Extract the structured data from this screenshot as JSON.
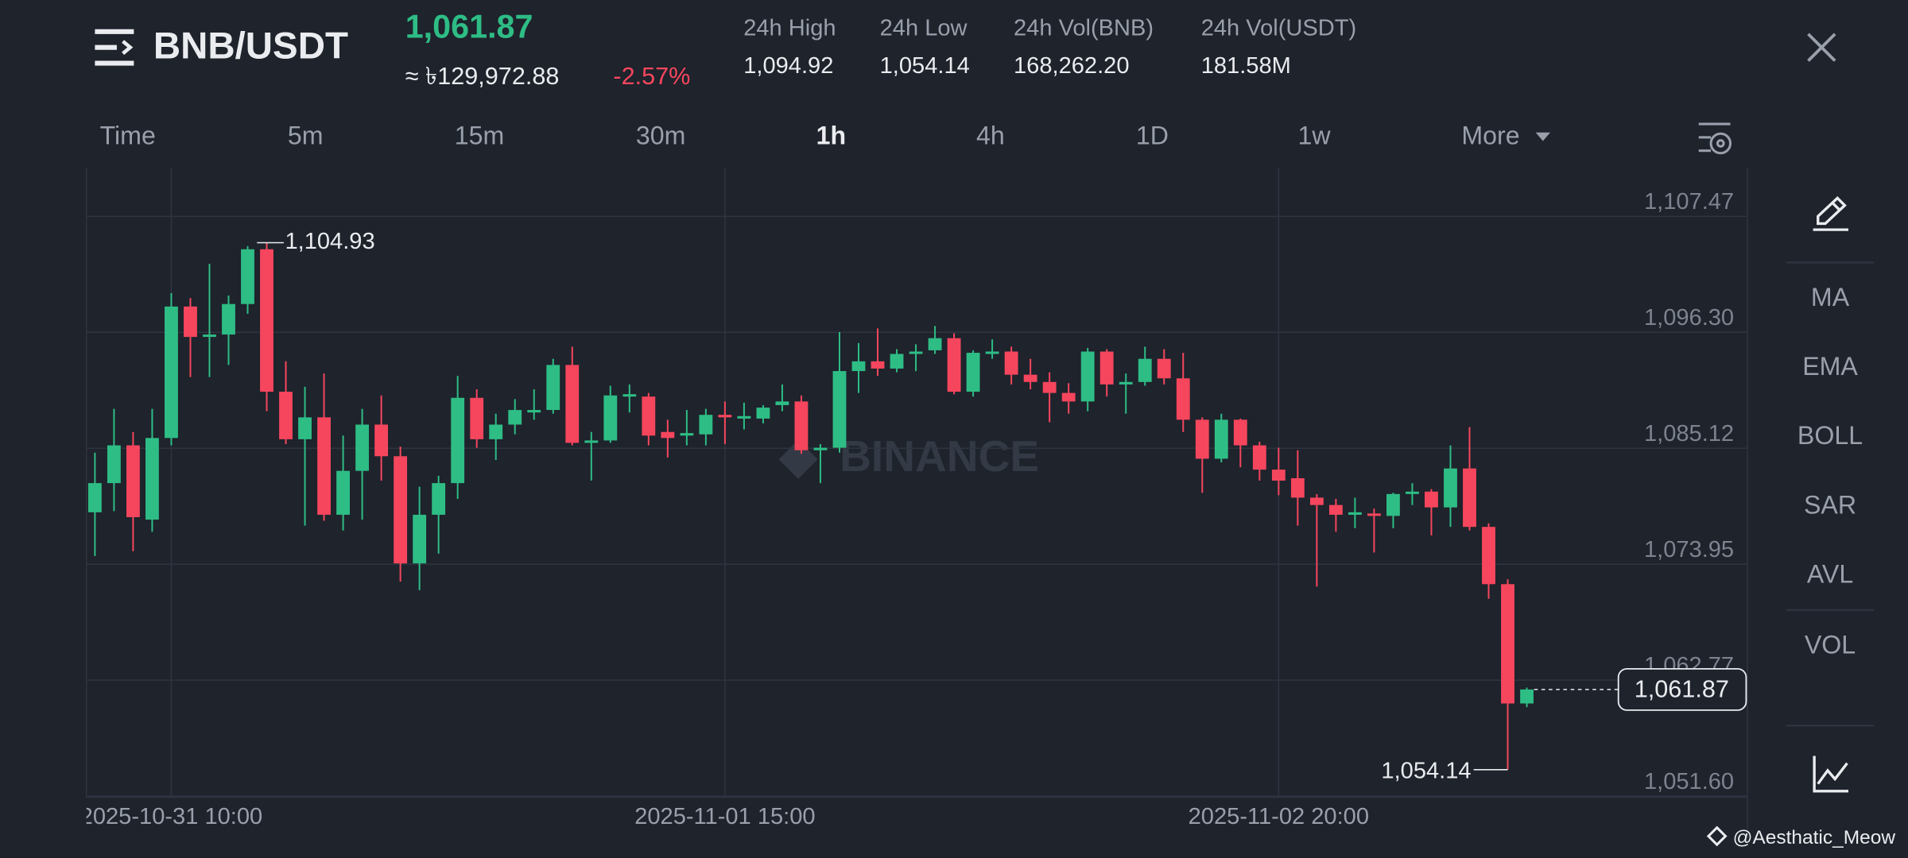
{
  "header": {
    "pair": "BNB/USDT",
    "price": "1,061.87",
    "fiat_price": "≈ ৳129,972.88",
    "change": "-2.57%",
    "stats": [
      {
        "label": "24h High",
        "value": "1,094.92"
      },
      {
        "label": "24h Low",
        "value": "1,054.14"
      },
      {
        "label": "24h Vol(BNB)",
        "value": "168,262.20"
      },
      {
        "label": "24h Vol(USDT)",
        "value": "181.58M"
      }
    ]
  },
  "tabs": {
    "items": [
      "Time",
      "5m",
      "15m",
      "30m",
      "1h",
      "4h",
      "1D",
      "1w",
      "More"
    ],
    "active": 4
  },
  "indicators": [
    "MA",
    "EMA",
    "BOLL",
    "SAR",
    "AVL",
    "VOL"
  ],
  "watermark": "BINANCE",
  "credit": "@Aesthatic_Meow",
  "chart_data": {
    "type": "candlestick",
    "categories": [
      null,
      null,
      null,
      null,
      "2025-10-31 10:00",
      null,
      null,
      null,
      null,
      null,
      null,
      null,
      null,
      null,
      null,
      null,
      null,
      null,
      null,
      null,
      null,
      null,
      null,
      null,
      null,
      null,
      null,
      null,
      null,
      null,
      null,
      null,
      null,
      "2025-11-01 15:00",
      null,
      null,
      null,
      null,
      null,
      null,
      null,
      null,
      null,
      null,
      null,
      null,
      null,
      null,
      null,
      null,
      null,
      null,
      null,
      null,
      null,
      null,
      null,
      null,
      null,
      null,
      null,
      null,
      "2025-11-02 20:00",
      null,
      null,
      null,
      null,
      null,
      null,
      null,
      null,
      null,
      null,
      null,
      null,
      null
    ],
    "open": [
      1078.95,
      1081.76,
      1085.4,
      1078.24,
      1086.11,
      1098.78,
      1095.85,
      1096.08,
      1099.02,
      1104.3,
      1090.57,
      1085.99,
      1088.1,
      1078.71,
      1082.94,
      1087.4,
      1084.35,
      1074.02,
      1078.71,
      1081.76,
      1089.98,
      1085.99,
      1087.4,
      1088.57,
      1088.81,
      1093.15,
      1085.64,
      1085.87,
      1090.1,
      1090.1,
      1086.69,
      1086.34,
      1086.46,
      1088.34,
      1087.98,
      1087.98,
      1089.28,
      1089.63,
      1084.93,
      1085.17,
      1092.56,
      1093.5,
      1092.8,
      1094.21,
      1094.56,
      1095.73,
      1090.57,
      1094.21,
      1094.44,
      1092.21,
      1091.51,
      1090.45,
      1089.63,
      1094.44,
      1091.27,
      1091.51,
      1093.74,
      1091.86,
      1087.87,
      1084.11,
      1087.87,
      1085.4,
      1083.06,
      1082.23,
      1080.36,
      1079.65,
      1078.71,
      1078.83,
      1078.6,
      1080.71,
      1080.94,
      1079.42,
      1083.17,
      1077.54,
      1072.02,
      1060.52
    ],
    "high": [
      1084.7,
      1088.92,
      1086.69,
      1088.92,
      1100.07,
      1099.6,
      1102.89,
      1099.84,
      1104.6,
      1104.93,
      1093.5,
      1091.04,
      1092.33,
      1086.34,
      1088.92,
      1090.21,
      1085.28,
      1081.41,
      1082.47,
      1092.09,
      1090.8,
      1088.45,
      1089.86,
      1090.8,
      1093.74,
      1094.91,
      1086.69,
      1091.15,
      1091.27,
      1090.45,
      1087.87,
      1088.81,
      1088.92,
      1089.63,
      1089.51,
      1089.28,
      1091.27,
      1090.21,
      1085.52,
      1096.32,
      1095.26,
      1096.67,
      1094.67,
      1095.14,
      1096.9,
      1096.2,
      1094.56,
      1095.61,
      1094.91,
      1093.74,
      1092.44,
      1091.39,
      1094.79,
      1094.67,
      1092.33,
      1094.91,
      1094.67,
      1094.32,
      1088.1,
      1088.45,
      1087.98,
      1085.75,
      1085.17,
      1084.93,
      1080.71,
      1080.24,
      1080.36,
      1079.3,
      1080.83,
      1081.76,
      1081.18,
      1085.4,
      1087.16,
      1077.89,
      1072.49,
      1062.05
    ],
    "low": [
      1074.72,
      1079.06,
      1075.19,
      1077.07,
      1085.4,
      1091.98,
      1091.98,
      1093.15,
      1098.08,
      1088.69,
      1085.52,
      1077.66,
      1078.13,
      1077.19,
      1078.24,
      1082.0,
      1072.26,
      1071.44,
      1074.96,
      1080.24,
      1085.17,
      1083.99,
      1086.46,
      1087.87,
      1088.45,
      1085.4,
      1082.0,
      1085.64,
      1088.57,
      1085.4,
      1084.23,
      1085.4,
      1085.4,
      1085.52,
      1086.93,
      1087.52,
      1088.69,
      1084.58,
      1081.76,
      1084.7,
      1090.45,
      1092.09,
      1092.44,
      1092.56,
      1094.21,
      1090.33,
      1090.1,
      1093.74,
      1091.27,
      1090.8,
      1087.63,
      1088.45,
      1088.69,
      1090.1,
      1088.45,
      1091.15,
      1091.27,
      1086.69,
      1080.83,
      1083.76,
      1083.29,
      1082.0,
      1080.59,
      1077.66,
      1071.79,
      1077.07,
      1077.42,
      1075.07,
      1077.42,
      1079.65,
      1076.72,
      1077.54,
      1077.19,
      1070.61,
      1054.14,
      1060.17
    ],
    "close": [
      1081.76,
      1085.4,
      1078.48,
      1086.11,
      1098.78,
      1095.85,
      1096.08,
      1099.02,
      1104.3,
      1090.57,
      1085.99,
      1088.1,
      1078.71,
      1082.94,
      1087.4,
      1084.35,
      1074.02,
      1078.71,
      1081.76,
      1089.98,
      1085.99,
      1087.4,
      1088.81,
      1088.81,
      1093.15,
      1085.64,
      1085.87,
      1090.21,
      1090.33,
      1086.34,
      1086.11,
      1086.58,
      1088.34,
      1088.1,
      1088.22,
      1089.04,
      1089.63,
      1084.93,
      1085.17,
      1092.56,
      1093.5,
      1092.8,
      1094.21,
      1094.44,
      1095.73,
      1090.57,
      1094.32,
      1094.44,
      1092.21,
      1091.51,
      1090.45,
      1089.63,
      1094.44,
      1091.27,
      1091.51,
      1093.74,
      1091.86,
      1087.87,
      1084.11,
      1087.87,
      1085.4,
      1083.06,
      1082.0,
      1080.36,
      1079.65,
      1078.71,
      1078.95,
      1078.6,
      1080.71,
      1080.94,
      1079.42,
      1083.17,
      1077.54,
      1072.02,
      1060.52,
      1061.87
    ],
    "up_color": "#2ebd85",
    "down_color": "#f6465d",
    "ylim": [
      1051.6,
      1112.16
    ],
    "yticks": [
      {
        "value": 1107.47,
        "label": "1,107.47"
      },
      {
        "value": 1096.3,
        "label": "1,096.30"
      },
      {
        "value": 1085.12,
        "label": "1,085.12"
      },
      {
        "value": 1073.95,
        "label": "1,073.95"
      },
      {
        "value": 1062.77,
        "label": "1,062.77"
      },
      {
        "value": 1051.6,
        "label": "1,051.60"
      }
    ],
    "grid": true,
    "annotations": [
      {
        "value": 1104.93,
        "label": "1,104.93"
      },
      {
        "value": 1054.14,
        "label": "1,054.14"
      }
    ],
    "last_price": {
      "value": 1061.87,
      "label": "1,061.87"
    }
  }
}
